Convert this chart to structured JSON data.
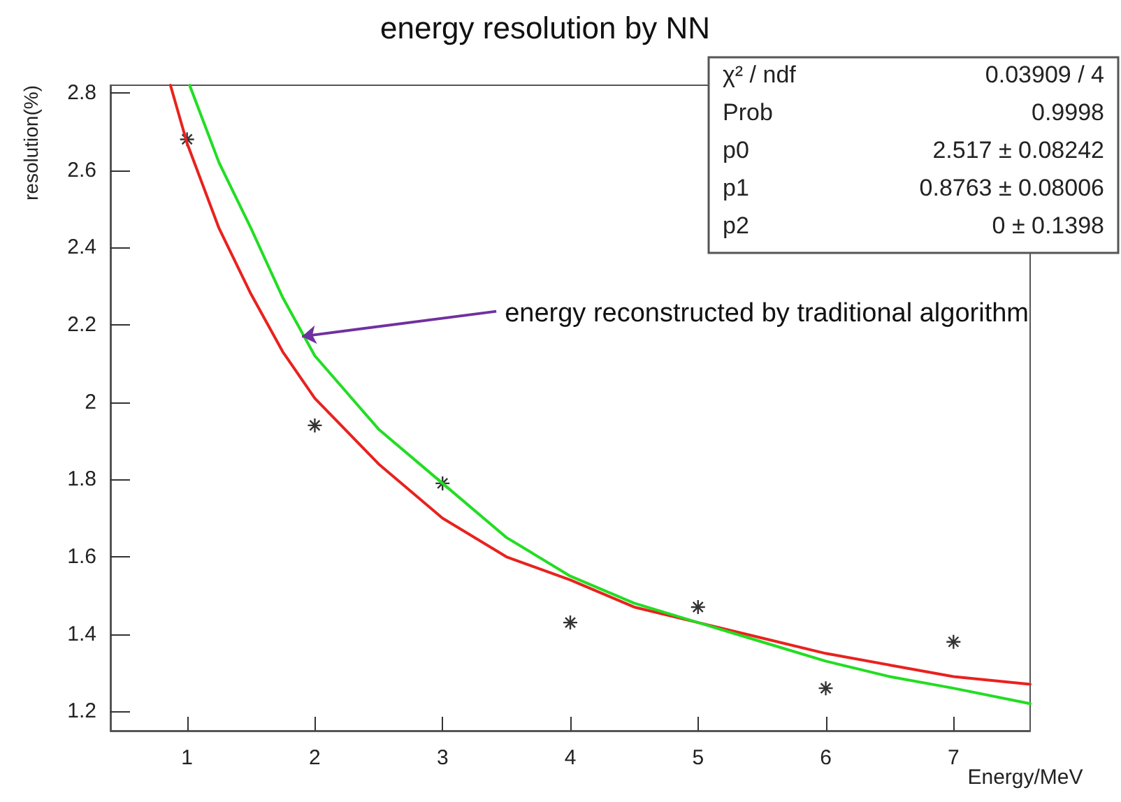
{
  "chart_data": {
    "type": "scatter",
    "title": "energy resolution by NN",
    "xlabel": "Energy/MeV",
    "ylabel": "resolution(%)",
    "xlim": [
      0.4,
      7.6
    ],
    "ylim": [
      1.15,
      2.82
    ],
    "xticks": [
      1,
      2,
      3,
      4,
      5,
      6,
      7
    ],
    "yticks": [
      1.2,
      1.4,
      1.6,
      1.8,
      2,
      2.2,
      2.4,
      2.6,
      2.8
    ],
    "grid": false,
    "series": [
      {
        "marker": "cross",
        "color": "#000000",
        "x": [
          1,
          2,
          3,
          4,
          5,
          6,
          7
        ],
        "values": [
          2.68,
          1.94,
          1.79,
          1.43,
          1.47,
          1.26,
          1.38
        ]
      },
      {
        "type": "line",
        "marker": "none",
        "line_style": "solid",
        "color": "#e8221e",
        "x": [
          0.87,
          1,
          1.25,
          1.5,
          1.75,
          2,
          2.5,
          3,
          3.5,
          4,
          4.5,
          5,
          5.5,
          6,
          6.5,
          7,
          7.6
        ],
        "values": [
          2.82,
          2.67,
          2.45,
          2.28,
          2.13,
          2.01,
          1.84,
          1.7,
          1.6,
          1.54,
          1.47,
          1.43,
          1.39,
          1.35,
          1.32,
          1.29,
          1.27
        ]
      },
      {
        "type": "line",
        "marker": "none",
        "line_style": "solid",
        "color": "#22dd22",
        "x": [
          1.02,
          1.25,
          1.5,
          1.75,
          2,
          2.5,
          3,
          3.5,
          4,
          4.5,
          5,
          5.5,
          6,
          6.5,
          7,
          7.6
        ],
        "values": [
          2.82,
          2.62,
          2.45,
          2.27,
          2.12,
          1.93,
          1.79,
          1.65,
          1.55,
          1.48,
          1.43,
          1.38,
          1.33,
          1.29,
          1.26,
          1.22
        ]
      }
    ],
    "annotations": [
      {
        "text": "energy reconstructed by traditional algorithm",
        "x": 1.9,
        "y": 2.17
      },
      "χ² / ndf\t0.03909 / 4",
      "Prob\t0.9998",
      "p0\t2.517 ± 0.08242",
      "p1\t0.8763 ± 0.08006",
      "p2\t0 ± 0.1398"
    ]
  }
}
